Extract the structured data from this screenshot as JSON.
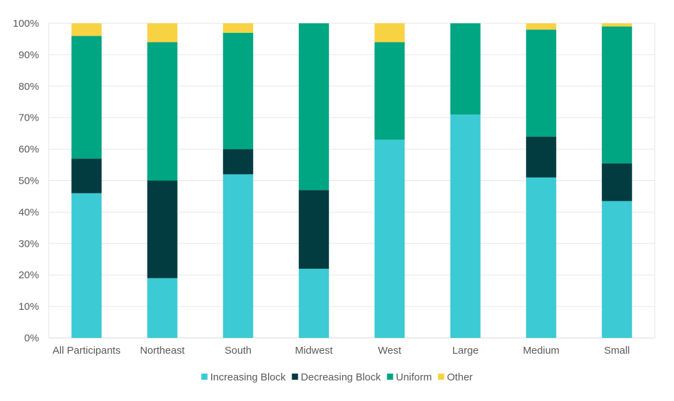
{
  "chart_data": {
    "type": "bar",
    "stacked": true,
    "categories": [
      "All Participants",
      "Northeast",
      "South",
      "Midwest",
      "West",
      "Large",
      "Medium",
      "Small"
    ],
    "series": [
      {
        "name": "Increasing Block",
        "color": "#3ccad4",
        "values": [
          46,
          19,
          52,
          22,
          63,
          71,
          51,
          43.5
        ]
      },
      {
        "name": "Decreasing Block",
        "color": "#023b40",
        "values": [
          11,
          31,
          8,
          25,
          0,
          0,
          13,
          12
        ]
      },
      {
        "name": "Uniform",
        "color": "#00a582",
        "values": [
          39,
          44,
          37,
          53,
          31,
          29,
          34,
          43.5
        ]
      },
      {
        "name": "Other",
        "color": "#f7d343",
        "values": [
          4,
          6,
          3,
          0,
          6,
          0,
          2,
          1
        ]
      }
    ],
    "ylim": [
      0,
      100
    ],
    "yticks": [
      "0%",
      "10%",
      "20%",
      "30%",
      "40%",
      "50%",
      "60%",
      "70%",
      "80%",
      "90%",
      "100%"
    ],
    "grid": true,
    "legend_position": "bottom"
  }
}
